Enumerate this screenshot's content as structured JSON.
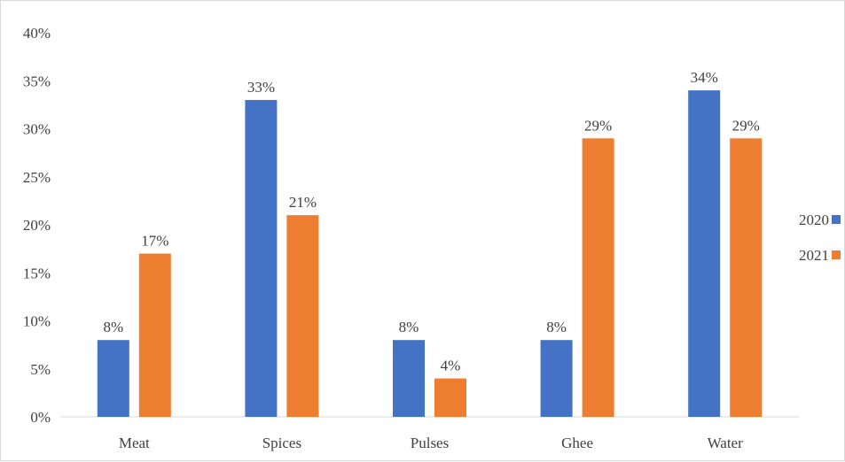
{
  "colors": {
    "series_2020": "#4472C4",
    "series_2021": "#ED7D31",
    "axis": "#d9d9d9",
    "text": "#404040"
  },
  "chart_data": {
    "type": "bar",
    "categories": [
      "Meat",
      "Spices",
      "Pulses",
      "Ghee",
      "Water"
    ],
    "series": [
      {
        "name": "2020",
        "values": [
          8,
          33,
          8,
          8,
          34
        ],
        "labels": [
          "8%",
          "33%",
          "8%",
          "8%",
          "34%"
        ]
      },
      {
        "name": "2021",
        "values": [
          17,
          21,
          4,
          29,
          29
        ],
        "labels": [
          "17%",
          "21%",
          "4%",
          "29%",
          "29%"
        ]
      }
    ],
    "y_ticks": [
      "0%",
      "5%",
      "10%",
      "15%",
      "20%",
      "25%",
      "30%",
      "35%",
      "40%"
    ],
    "ylim": [
      0,
      40
    ],
    "grid": false,
    "legend": "right"
  }
}
